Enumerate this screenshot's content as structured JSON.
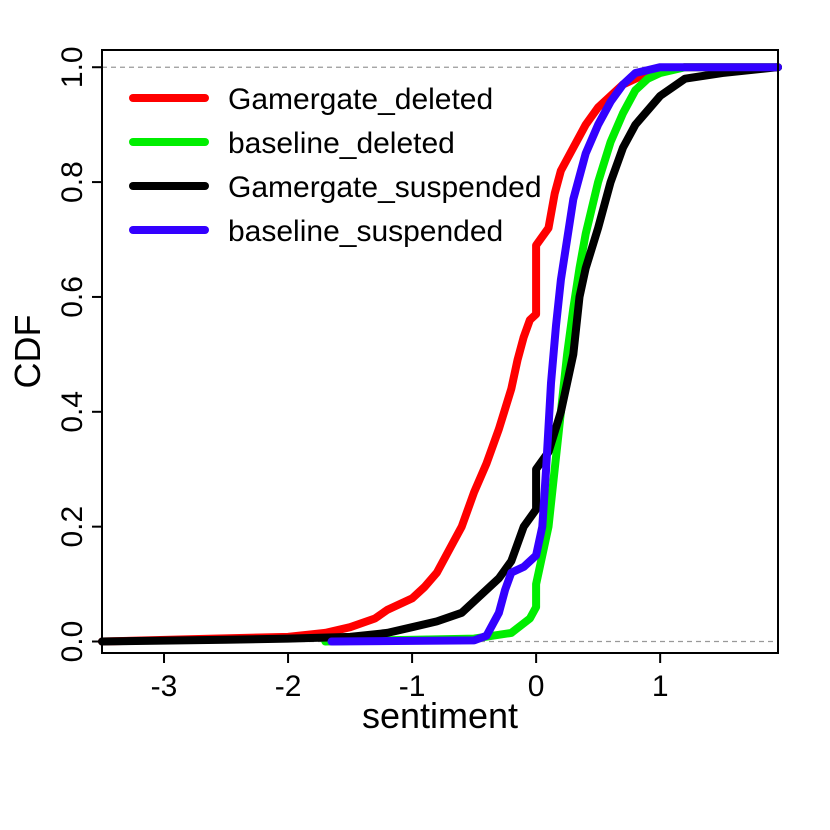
{
  "chart_data": {
    "type": "line",
    "xlabel": "sentiment",
    "ylabel": "CDF",
    "xlim": [
      -3.5,
      1.95
    ],
    "ylim": [
      -0.02,
      1.03
    ],
    "x_ticks": [
      -3,
      -2,
      -1,
      0,
      1
    ],
    "x_tick_labels": [
      "-3",
      "-2",
      "-1",
      "0",
      "1"
    ],
    "y_ticks": [
      0,
      0.2,
      0.4,
      0.6,
      0.8,
      1
    ],
    "y_tick_labels": [
      "0.0",
      "0.2",
      "0.4",
      "0.6",
      "0.8",
      "1.0"
    ],
    "reference_lines_y": [
      0,
      1
    ],
    "grid": false,
    "legend_position": "top-left",
    "series": [
      {
        "name": "Gamergate_deleted",
        "color": "#ff0000",
        "points": [
          [
            -3.5,
            0
          ],
          [
            -2.6,
            0.005
          ],
          [
            -2.0,
            0.008
          ],
          [
            -1.7,
            0.015
          ],
          [
            -1.5,
            0.025
          ],
          [
            -1.3,
            0.04
          ],
          [
            -1.2,
            0.055
          ],
          [
            -1.0,
            0.075
          ],
          [
            -0.9,
            0.095
          ],
          [
            -0.8,
            0.12
          ],
          [
            -0.7,
            0.16
          ],
          [
            -0.6,
            0.2
          ],
          [
            -0.5,
            0.26
          ],
          [
            -0.4,
            0.31
          ],
          [
            -0.3,
            0.37
          ],
          [
            -0.2,
            0.44
          ],
          [
            -0.15,
            0.49
          ],
          [
            -0.1,
            0.53
          ],
          [
            -0.05,
            0.56
          ],
          [
            0.0,
            0.57
          ],
          [
            0.0,
            0.69
          ],
          [
            0.1,
            0.72
          ],
          [
            0.15,
            0.78
          ],
          [
            0.2,
            0.82
          ],
          [
            0.3,
            0.86
          ],
          [
            0.4,
            0.9
          ],
          [
            0.5,
            0.93
          ],
          [
            0.7,
            0.97
          ],
          [
            0.9,
            0.99
          ],
          [
            1.2,
            1.0
          ],
          [
            1.95,
            1.0
          ]
        ]
      },
      {
        "name": "baseline_deleted",
        "color": "#00ee00",
        "points": [
          [
            -1.7,
            0
          ],
          [
            -0.5,
            0.005
          ],
          [
            -0.2,
            0.015
          ],
          [
            -0.05,
            0.04
          ],
          [
            0.0,
            0.06
          ],
          [
            0.0,
            0.1
          ],
          [
            0.1,
            0.2
          ],
          [
            0.15,
            0.3
          ],
          [
            0.2,
            0.4
          ],
          [
            0.25,
            0.5
          ],
          [
            0.3,
            0.58
          ],
          [
            0.35,
            0.65
          ],
          [
            0.4,
            0.71
          ],
          [
            0.5,
            0.8
          ],
          [
            0.6,
            0.87
          ],
          [
            0.7,
            0.92
          ],
          [
            0.8,
            0.96
          ],
          [
            0.9,
            0.98
          ],
          [
            1.0,
            0.99
          ],
          [
            1.2,
            1.0
          ],
          [
            1.95,
            1.0
          ]
        ]
      },
      {
        "name": "Gamergate_suspended",
        "color": "#000000",
        "points": [
          [
            -3.5,
            0
          ],
          [
            -2.5,
            0.003
          ],
          [
            -2.0,
            0.005
          ],
          [
            -1.5,
            0.008
          ],
          [
            -1.2,
            0.015
          ],
          [
            -1.0,
            0.025
          ],
          [
            -0.8,
            0.035
          ],
          [
            -0.6,
            0.05
          ],
          [
            -0.5,
            0.07
          ],
          [
            -0.4,
            0.09
          ],
          [
            -0.3,
            0.11
          ],
          [
            -0.2,
            0.14
          ],
          [
            -0.1,
            0.2
          ],
          [
            0.0,
            0.23
          ],
          [
            0.0,
            0.3
          ],
          [
            0.1,
            0.33
          ],
          [
            0.2,
            0.4
          ],
          [
            0.3,
            0.5
          ],
          [
            0.35,
            0.6
          ],
          [
            0.4,
            0.65
          ],
          [
            0.5,
            0.72
          ],
          [
            0.6,
            0.8
          ],
          [
            0.7,
            0.86
          ],
          [
            0.8,
            0.9
          ],
          [
            1.0,
            0.95
          ],
          [
            1.2,
            0.98
          ],
          [
            1.5,
            0.99
          ],
          [
            1.95,
            1.0
          ]
        ]
      },
      {
        "name": "baseline_suspended",
        "color": "#3300ff",
        "points": [
          [
            -1.65,
            0
          ],
          [
            -0.5,
            0.002
          ],
          [
            -0.4,
            0.01
          ],
          [
            -0.3,
            0.05
          ],
          [
            -0.25,
            0.09
          ],
          [
            -0.2,
            0.12
          ],
          [
            -0.1,
            0.13
          ],
          [
            0.0,
            0.15
          ],
          [
            0.05,
            0.2
          ],
          [
            0.08,
            0.3
          ],
          [
            0.12,
            0.45
          ],
          [
            0.16,
            0.55
          ],
          [
            0.2,
            0.63
          ],
          [
            0.3,
            0.77
          ],
          [
            0.4,
            0.85
          ],
          [
            0.5,
            0.9
          ],
          [
            0.6,
            0.94
          ],
          [
            0.7,
            0.97
          ],
          [
            0.8,
            0.99
          ],
          [
            0.9,
            0.995
          ],
          [
            1.0,
            1.0
          ],
          [
            1.95,
            1.0
          ]
        ]
      }
    ]
  }
}
